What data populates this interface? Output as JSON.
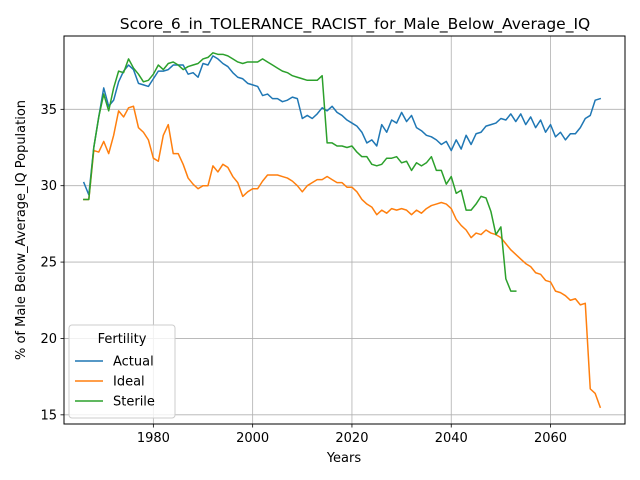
{
  "chart_data": {
    "type": "line",
    "title": "Score_6_in_TOLERANCE_RACIST_for_Male_Below_Average_IQ",
    "xlabel": "Years",
    "ylabel": "% of Male Below_Average_IQ Population",
    "xlim": [
      1962,
      2075
    ],
    "ylim": [
      14.4,
      39.8
    ],
    "xticks": [
      1980,
      2000,
      2020,
      2040,
      2060
    ],
    "yticks": [
      15,
      20,
      25,
      30,
      35
    ],
    "grid": true,
    "legend": {
      "title": "Fertility",
      "placement": "lower-left"
    },
    "series": [
      {
        "name": "Actual",
        "color": "#1f77b4",
        "x": [
          1966,
          1967,
          1968,
          1969,
          1970,
          1971,
          1972,
          1973,
          1974,
          1975,
          1976,
          1977,
          1978,
          1979,
          1980,
          1981,
          1982,
          1983,
          1984,
          1985,
          1986,
          1987,
          1988,
          1989,
          1990,
          1991,
          1992,
          1993,
          1994,
          1995,
          1996,
          1997,
          1998,
          1999,
          2000,
          2001,
          2002,
          2003,
          2004,
          2005,
          2006,
          2007,
          2008,
          2009,
          2010,
          2011,
          2012,
          2013,
          2014,
          2015,
          2016,
          2017,
          2018,
          2019,
          2020,
          2021,
          2022,
          2023,
          2024,
          2025,
          2026,
          2027,
          2028,
          2029,
          2030,
          2031,
          2032,
          2033,
          2034,
          2035,
          2036,
          2037,
          2038,
          2039,
          2040,
          2041,
          2042,
          2043,
          2044,
          2045,
          2046,
          2047,
          2048,
          2049,
          2050,
          2051,
          2052,
          2053,
          2054,
          2055,
          2056,
          2057,
          2058,
          2059,
          2060,
          2061,
          2062,
          2063,
          2064,
          2065,
          2066,
          2067,
          2068,
          2069,
          2070
        ],
        "values": [
          30.2,
          29.4,
          32.5,
          34.5,
          36.4,
          35.2,
          35.6,
          36.8,
          37.5,
          37.9,
          37.6,
          36.7,
          36.6,
          36.5,
          37.0,
          37.5,
          37.5,
          37.6,
          37.9,
          37.9,
          37.9,
          37.3,
          37.4,
          37.1,
          38.0,
          37.9,
          38.5,
          38.3,
          38.0,
          37.8,
          37.4,
          37.1,
          37.0,
          36.7,
          36.6,
          36.5,
          35.9,
          36.0,
          35.7,
          35.7,
          35.5,
          35.6,
          35.8,
          35.7,
          34.4,
          34.6,
          34.4,
          34.7,
          35.1,
          34.9,
          35.2,
          34.8,
          34.6,
          34.3,
          34.1,
          33.9,
          33.5,
          32.8,
          33.0,
          32.6,
          34.0,
          33.5,
          34.3,
          34.1,
          34.8,
          34.2,
          34.6,
          33.8,
          33.6,
          33.3,
          33.2,
          33.0,
          32.7,
          32.9,
          32.3,
          33.0,
          32.4,
          33.3,
          32.7,
          33.4,
          33.5,
          33.9,
          34.0,
          34.1,
          34.4,
          34.3,
          34.7,
          34.2,
          34.7,
          34.0,
          34.5,
          33.8,
          34.3,
          33.5,
          34.0,
          33.2,
          33.5,
          33.0,
          33.4,
          33.4,
          33.8,
          34.4,
          34.6,
          35.6,
          35.7
        ]
      },
      {
        "name": "Ideal",
        "color": "#ff7f0e",
        "x": [
          1966,
          1967,
          1968,
          1969,
          1970,
          1971,
          1972,
          1973,
          1974,
          1975,
          1976,
          1977,
          1978,
          1979,
          1980,
          1981,
          1982,
          1983,
          1984,
          1985,
          1986,
          1987,
          1988,
          1989,
          1990,
          1991,
          1992,
          1993,
          1994,
          1995,
          1996,
          1997,
          1998,
          1999,
          2000,
          2001,
          2002,
          2003,
          2004,
          2005,
          2006,
          2007,
          2008,
          2009,
          2010,
          2011,
          2012,
          2013,
          2014,
          2015,
          2016,
          2017,
          2018,
          2019,
          2020,
          2021,
          2022,
          2023,
          2024,
          2025,
          2026,
          2027,
          2028,
          2029,
          2030,
          2031,
          2032,
          2033,
          2034,
          2035,
          2036,
          2037,
          2038,
          2039,
          2040,
          2041,
          2042,
          2043,
          2044,
          2045,
          2046,
          2047,
          2048,
          2049,
          2050,
          2051,
          2052,
          2053,
          2054,
          2055,
          2056,
          2057,
          2058,
          2059,
          2060,
          2061,
          2062,
          2063,
          2064,
          2065,
          2066,
          2067,
          2068,
          2069,
          2070
        ],
        "values": [
          29.1,
          29.1,
          32.3,
          32.2,
          32.9,
          32.1,
          33.3,
          34.9,
          34.5,
          35.1,
          35.2,
          33.8,
          33.5,
          33.0,
          31.8,
          31.6,
          33.3,
          34.0,
          32.1,
          32.1,
          31.4,
          30.5,
          30.1,
          29.8,
          30.0,
          30.0,
          31.3,
          30.9,
          31.4,
          31.2,
          30.6,
          30.2,
          29.3,
          29.6,
          29.8,
          29.8,
          30.3,
          30.7,
          30.7,
          30.7,
          30.6,
          30.5,
          30.3,
          30.0,
          29.6,
          30.0,
          30.2,
          30.4,
          30.4,
          30.6,
          30.4,
          30.2,
          30.2,
          29.9,
          29.9,
          29.6,
          29.1,
          28.8,
          28.6,
          28.1,
          28.4,
          28.2,
          28.5,
          28.4,
          28.5,
          28.4,
          28.1,
          28.4,
          28.2,
          28.5,
          28.7,
          28.8,
          28.9,
          28.8,
          28.5,
          27.8,
          27.4,
          27.1,
          26.6,
          26.9,
          26.8,
          27.1,
          26.9,
          26.8,
          26.6,
          26.2,
          25.8,
          25.5,
          25.2,
          24.9,
          24.7,
          24.3,
          24.2,
          23.8,
          23.7,
          23.1,
          23.0,
          22.8,
          22.5,
          22.6,
          22.2,
          22.3,
          16.7,
          16.4,
          15.5
        ]
      },
      {
        "name": "Sterile",
        "color": "#2ca02c",
        "x": [
          1966,
          1967,
          1968,
          1969,
          1970,
          1971,
          1972,
          1973,
          1974,
          1975,
          1976,
          1977,
          1978,
          1979,
          1980,
          1981,
          1982,
          1983,
          1984,
          1985,
          1986,
          1987,
          1988,
          1989,
          1990,
          1991,
          1992,
          1993,
          1994,
          1995,
          1996,
          1997,
          1998,
          1999,
          2000,
          2001,
          2002,
          2003,
          2004,
          2005,
          2006,
          2007,
          2008,
          2009,
          2010,
          2011,
          2012,
          2013,
          2014,
          2015,
          2016,
          2017,
          2018,
          2019,
          2020,
          2021,
          2022,
          2023,
          2024,
          2025,
          2026,
          2027,
          2028,
          2029,
          2030,
          2031,
          2032,
          2033,
          2034,
          2035,
          2036,
          2037,
          2038,
          2039,
          2040,
          2041,
          2042,
          2043,
          2044,
          2045,
          2046,
          2047,
          2048,
          2049,
          2050,
          2051,
          2052,
          2053
        ],
        "values": [
          29.1,
          29.1,
          32.5,
          34.5,
          36.0,
          34.9,
          36.4,
          37.5,
          37.4,
          38.3,
          37.7,
          37.3,
          36.8,
          36.9,
          37.3,
          37.9,
          37.6,
          38.0,
          38.1,
          37.9,
          37.6,
          37.8,
          37.9,
          38.0,
          38.3,
          38.4,
          38.7,
          38.6,
          38.6,
          38.5,
          38.3,
          38.1,
          38.0,
          38.1,
          38.1,
          38.1,
          38.3,
          38.1,
          37.9,
          37.7,
          37.5,
          37.4,
          37.2,
          37.1,
          37.0,
          36.9,
          36.9,
          36.9,
          37.2,
          32.8,
          32.8,
          32.6,
          32.6,
          32.5,
          32.6,
          32.2,
          31.9,
          31.9,
          31.4,
          31.3,
          31.4,
          31.8,
          31.8,
          31.9,
          31.5,
          31.6,
          31.0,
          31.5,
          31.3,
          31.5,
          31.9,
          31.0,
          31.0,
          30.1,
          30.6,
          29.5,
          29.7,
          28.4,
          28.4,
          28.8,
          29.3,
          29.2,
          28.3,
          26.8,
          27.3,
          23.9,
          23.1,
          23.1
        ]
      }
    ]
  }
}
